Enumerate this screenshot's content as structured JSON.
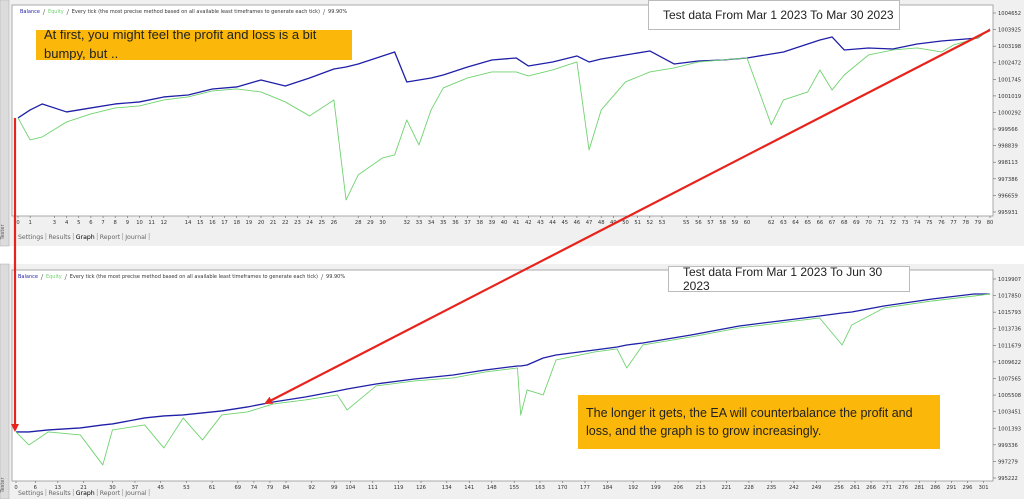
{
  "chart_data": [
    {
      "type": "line",
      "window_label": "Tester",
      "header_model": "Every tick (the most precise method based on all available least timeframes to generate each tick)",
      "header_quality": "99.90%",
      "period": "Test data From Mar 1 2023 To Mar 30 2023",
      "annotation": "At first, you might feel the profit and loss is a bit bumpy, but ..",
      "tabs": [
        "Settings",
        "Results",
        "Graph",
        "Report",
        "Journal"
      ],
      "grid": false,
      "xlim": [
        0,
        80
      ],
      "xticks": [
        0,
        1,
        3,
        4,
        5,
        6,
        7,
        8,
        9,
        10,
        11,
        12,
        14,
        15,
        16,
        17,
        18,
        19,
        20,
        21,
        22,
        23,
        24,
        25,
        26,
        28,
        29,
        30,
        32,
        33,
        34,
        35,
        36,
        37,
        38,
        39,
        40,
        41,
        42,
        43,
        44,
        45,
        46,
        47,
        48,
        49,
        50,
        51,
        52,
        53,
        55,
        56,
        57,
        58,
        59,
        60,
        62,
        63,
        64,
        65,
        66,
        67,
        68,
        69,
        70,
        71,
        72,
        73,
        74,
        75,
        76,
        77,
        78,
        79,
        80
      ],
      "ylim": [
        995931,
        1004652
      ],
      "yticks": [
        995931,
        996659,
        997386,
        998113,
        998839,
        999566,
        1000292,
        1001019,
        1001745,
        1002472,
        1003198,
        1003925,
        1004652
      ],
      "x": [
        0,
        1,
        2,
        4,
        6,
        8,
        10,
        12,
        14,
        16,
        18,
        20,
        22,
        24,
        26,
        27,
        28,
        30,
        31,
        32,
        33,
        34,
        35,
        37,
        39,
        41,
        42,
        44,
        46,
        47,
        48,
        50,
        52,
        54,
        56,
        58,
        60,
        62,
        63,
        65,
        66,
        67,
        68,
        70,
        72,
        74,
        76,
        77,
        79,
        80
      ],
      "series": [
        {
          "name": "Balance",
          "color": "#1f1fa8",
          "values": [
            1000053,
            1000403,
            1000666,
            1000316,
            1000491,
            1000666,
            1000754,
            1000973,
            1001060,
            1001323,
            1001411,
            1001717,
            1001455,
            1001805,
            1002199,
            1002287,
            1002418,
            1002769,
            1002944,
            1001630,
            1001717,
            1001805,
            1001936,
            1002287,
            1002593,
            1002681,
            1002331,
            1002506,
            1002769,
            1002506,
            1002637,
            1002812,
            1002988,
            1002418,
            1002550,
            1002593,
            1002681,
            1002856,
            1002944,
            1003294,
            1003469,
            1003601,
            1003031,
            1003119,
            1003075,
            1003294,
            1003426,
            1003469,
            1003557,
            1003951
          ]
        },
        {
          "name": "Equity",
          "color": "#6fd36f",
          "values": [
            1000053,
            999089,
            999221,
            999878,
            1000228,
            1000491,
            1000579,
            1000841,
            1000973,
            1001236,
            1001323,
            1001192,
            1000754,
            1000141,
            1000841,
            996461,
            997556,
            998301,
            998432,
            999965,
            998870,
            1000403,
            1001367,
            1001805,
            1002068,
            1002068,
            1001893,
            1002155,
            1002506,
            998651,
            1000403,
            1001630,
            1002068,
            1002243,
            1002506,
            1002593,
            1002681,
            999746,
            1000841,
            1001192,
            1002155,
            1001279,
            1001936,
            1002812,
            1003031,
            1003119,
            1002944,
            1003250,
            1003557,
            1003951
          ]
        }
      ]
    },
    {
      "type": "line",
      "window_label": "Tester",
      "header_model": "Every tick (the most precise method based on all available least timeframes to generate each tick)",
      "header_quality": "99.90%",
      "period": "Test data From Mar 1 2023 To Jun 30 2023",
      "annotation": "The longer it gets, the EA will counterbalance the profit and loss, and the graph is to grow increasingly.",
      "tabs": [
        "Settings",
        "Results",
        "Graph",
        "Report",
        "Journal"
      ],
      "grid": false,
      "xlim": [
        0,
        303
      ],
      "xticks": [
        0,
        6,
        13,
        21,
        30,
        37,
        45,
        53,
        61,
        69,
        74,
        79,
        84,
        92,
        99,
        104,
        111,
        119,
        126,
        134,
        141,
        148,
        155,
        163,
        170,
        177,
        184,
        192,
        199,
        206,
        213,
        221,
        228,
        235,
        242,
        249,
        256,
        261,
        266,
        271,
        276,
        281,
        286,
        291,
        296,
        301
      ],
      "ylim": [
        995222,
        1019907
      ],
      "yticks": [
        995222,
        997279,
        999336,
        1001393,
        1003451,
        1005508,
        1007565,
        1009622,
        1011679,
        1013736,
        1015793,
        1017850,
        1019907
      ],
      "x": [
        0,
        4,
        10,
        20,
        27,
        30,
        40,
        46,
        52,
        58,
        64,
        72,
        80,
        90,
        100,
        103,
        112,
        124,
        136,
        146,
        156,
        157,
        159,
        164,
        168,
        180,
        187,
        190,
        195,
        210,
        225,
        240,
        250,
        257,
        260,
        270,
        285,
        298,
        303
      ],
      "series": [
        {
          "name": "Balance",
          "color": "#1f1fa8",
          "values": [
            1000935,
            1000935,
            1001183,
            1001431,
            1001803,
            1001927,
            1002671,
            1002919,
            1003043,
            1003291,
            1003539,
            1004035,
            1004655,
            1005275,
            1006019,
            1006267,
            1006887,
            1007507,
            1008003,
            1008623,
            1009119,
            1009119,
            1009243,
            1010111,
            1010483,
            1011103,
            1011475,
            1011723,
            1011971,
            1012963,
            1014079,
            1014823,
            1015319,
            1015691,
            1015815,
            1016559,
            1017427,
            1018047,
            1018047
          ]
        },
        {
          "name": "Equity",
          "color": "#6fd36f",
          "values": [
            1000935,
            999323,
            1000935,
            1000563,
            996843,
            1001183,
            1001803,
            998951,
            1002671,
            999943,
            1003043,
            1003415,
            1004407,
            1004903,
            1005523,
            1003663,
            1006639,
            1007259,
            1007631,
            1008375,
            1008871,
            1003043,
            1006143,
            1005523,
            1009863,
            1010855,
            1011227,
            1008871,
            1011723,
            1012715,
            1013831,
            1014575,
            1015071,
            1011723,
            1014203,
            1016311,
            1017179,
            1017799,
            1018047
          ]
        }
      ]
    }
  ]
}
